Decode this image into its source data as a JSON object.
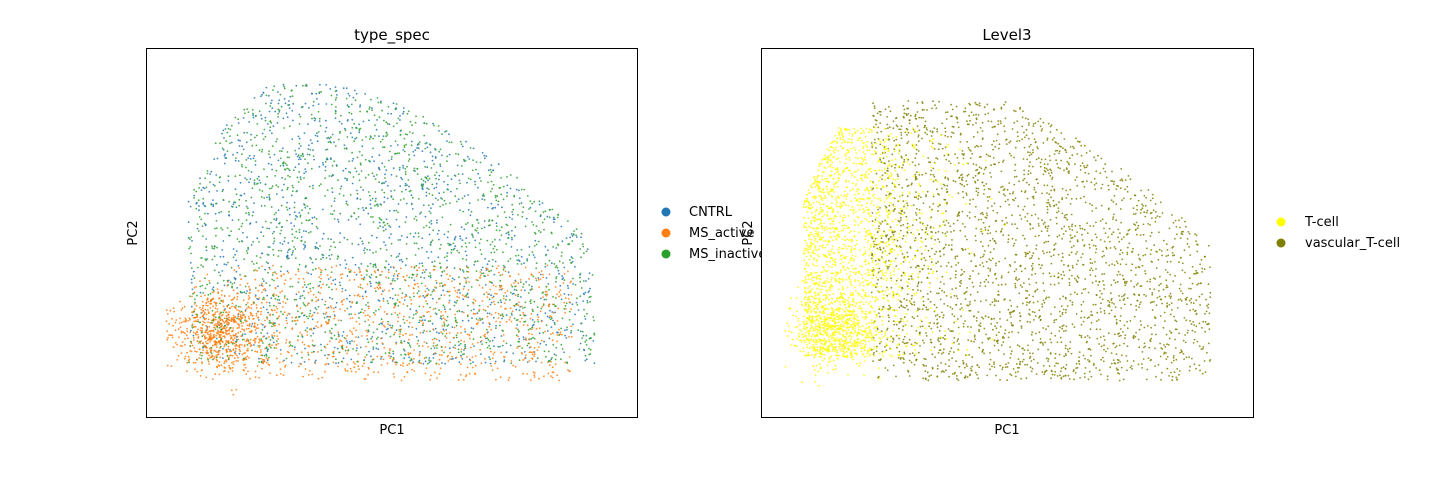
{
  "chart_data": [
    {
      "type": "scatter",
      "title": "type_spec",
      "xlabel": "PC1",
      "ylabel": "PC2",
      "grid": false,
      "ticks": false,
      "legend_position": "right-outside",
      "series": [
        {
          "name": "CNTRL",
          "color": "#1f77b4"
        },
        {
          "name": "MS_active",
          "color": "#ff7f0e"
        },
        {
          "name": "MS_inactive",
          "color": "#2ca02c"
        }
      ]
    },
    {
      "type": "scatter",
      "title": "Level3",
      "xlabel": "PC1",
      "ylabel": "PC2",
      "grid": false,
      "ticks": false,
      "legend_position": "right-outside",
      "series": [
        {
          "name": "T-cell",
          "color": "#ffff00"
        },
        {
          "name": "vascular_T-cell",
          "color": "#808000"
        }
      ]
    }
  ]
}
